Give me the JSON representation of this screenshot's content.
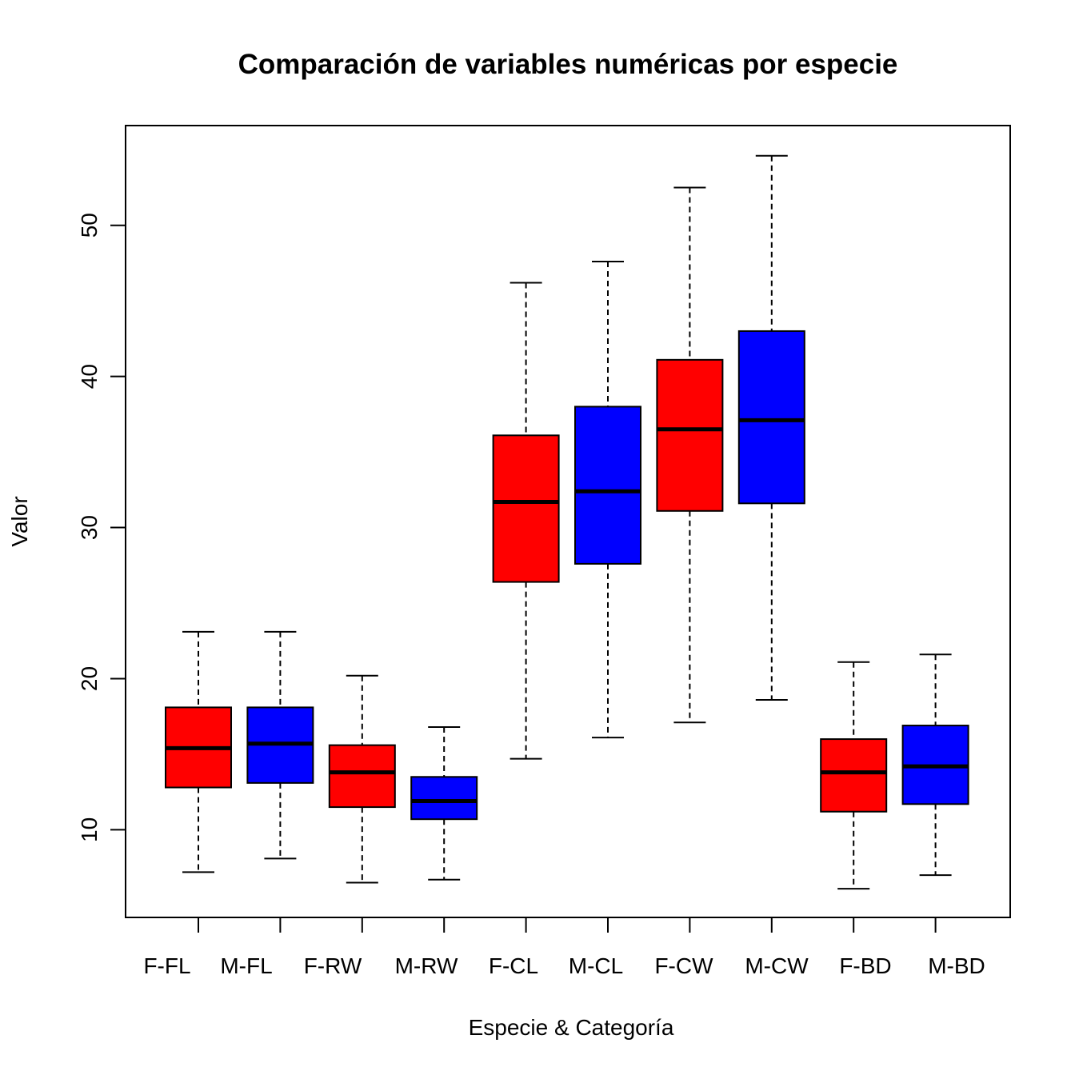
{
  "chart_data": {
    "type": "boxplot",
    "title": "Comparación de variables numéricas por especie",
    "xlabel": "Especie & Categoría",
    "ylabel": "Valor",
    "ylim": [
      4.2,
      56.6
    ],
    "yticks": [
      10,
      20,
      30,
      40,
      50
    ],
    "grid": false,
    "colors": {
      "F": "#ff0000",
      "M": "#0000ff",
      "median": "#000000",
      "outline": "#000000"
    },
    "categories": [
      "F-FL",
      "M-FL",
      "F-RW",
      "M-RW",
      "F-CL",
      "M-CL",
      "F-CW",
      "M-CW",
      "F-BD",
      "M-BD"
    ],
    "boxes": [
      {
        "label": "F-FL",
        "group": "F",
        "min": 7.2,
        "q1": 12.8,
        "median": 15.4,
        "q3": 18.1,
        "max": 23.1
      },
      {
        "label": "M-FL",
        "group": "M",
        "min": 8.1,
        "q1": 13.1,
        "median": 15.7,
        "q3": 18.1,
        "max": 23.1
      },
      {
        "label": "F-RW",
        "group": "F",
        "min": 6.5,
        "q1": 11.5,
        "median": 13.8,
        "q3": 15.6,
        "max": 20.2
      },
      {
        "label": "M-RW",
        "group": "M",
        "min": 6.7,
        "q1": 10.7,
        "median": 11.9,
        "q3": 13.5,
        "max": 16.8
      },
      {
        "label": "F-CL",
        "group": "F",
        "min": 14.7,
        "q1": 26.4,
        "median": 31.7,
        "q3": 36.1,
        "max": 46.2
      },
      {
        "label": "M-CL",
        "group": "M",
        "min": 16.1,
        "q1": 27.6,
        "median": 32.4,
        "q3": 38.0,
        "max": 47.6
      },
      {
        "label": "F-CW",
        "group": "F",
        "min": 17.1,
        "q1": 31.1,
        "median": 36.5,
        "q3": 41.1,
        "max": 52.5
      },
      {
        "label": "M-CW",
        "group": "M",
        "min": 18.6,
        "q1": 31.6,
        "median": 37.1,
        "q3": 43.0,
        "max": 54.6
      },
      {
        "label": "F-BD",
        "group": "F",
        "min": 6.1,
        "q1": 11.2,
        "median": 13.8,
        "q3": 16.0,
        "max": 21.1
      },
      {
        "label": "M-BD",
        "group": "M",
        "min": 7.0,
        "q1": 11.7,
        "median": 14.2,
        "q3": 16.9,
        "max": 21.6
      }
    ]
  }
}
